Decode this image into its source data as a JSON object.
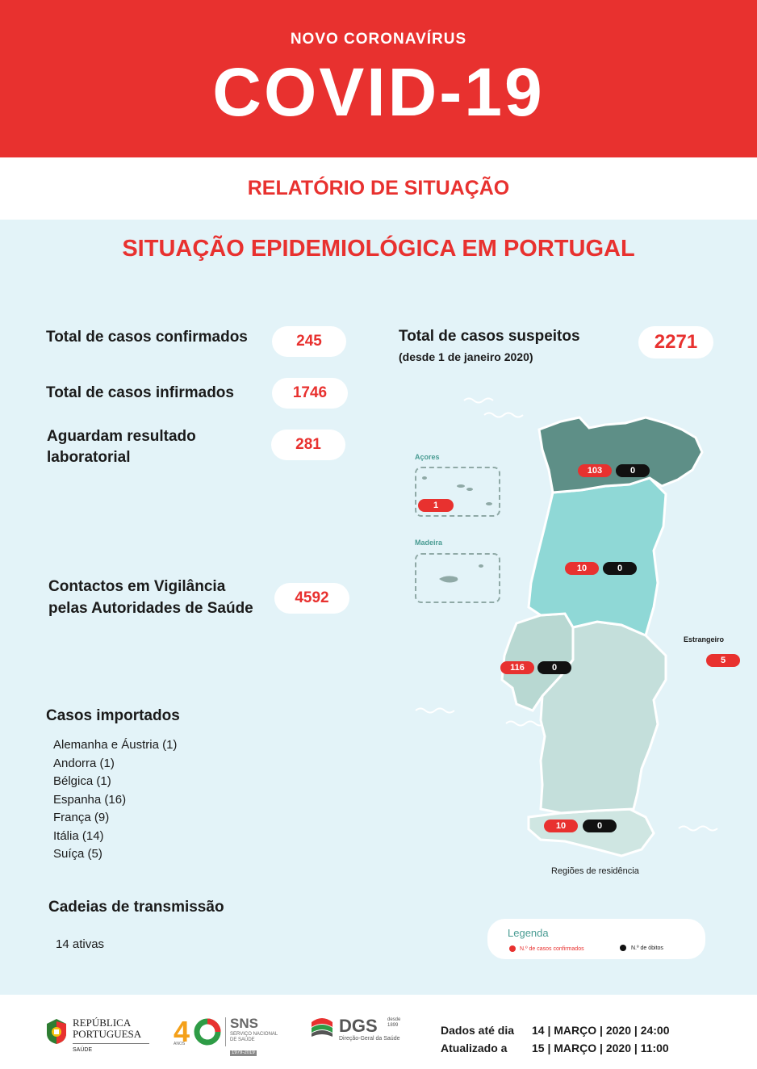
{
  "header": {
    "kicker": "NOVO CORONAVÍRUS",
    "title": "COVID-19"
  },
  "subheader": {
    "title": "RELATÓRIO DE SITUAÇÃO"
  },
  "main": {
    "section_title": "SITUAÇÃO EPIDEMIOLÓGICA EM PORTUGAL",
    "stats": {
      "confirmed": {
        "label": "Total de casos confirmados",
        "value": "245"
      },
      "infirmed": {
        "label": "Total de casos infirmados",
        "value": "1746"
      },
      "awaiting": {
        "label_line1": "Aguardam resultado",
        "label_line2": "laboratorial",
        "value": "281"
      },
      "contacts": {
        "label_line1": "Contactos em Vigilância",
        "label_line2": "pelas Autoridades de Saúde",
        "value": "4592"
      },
      "suspected": {
        "label": "Total de casos suspeitos",
        "sublabel": "(desde 1 de janeiro 2020)",
        "value": "2271"
      }
    },
    "imported": {
      "title": "Casos importados",
      "items": [
        "Alemanha e Áustria (1)",
        "Andorra (1)",
        "Bélgica (1)",
        "Espanha (16)",
        "França (9)",
        "Itália (14)",
        "Suíça (5)"
      ]
    },
    "chains": {
      "title": "Cadeias de transmissão",
      "value": "14 ativas"
    }
  },
  "map": {
    "azores": {
      "label": "Açores",
      "confirmed": "1"
    },
    "madeira": {
      "label": "Madeira"
    },
    "north": {
      "confirmed": "103",
      "deaths": "0"
    },
    "centre": {
      "confirmed": "10",
      "deaths": "0"
    },
    "lisbon": {
      "confirmed": "116",
      "deaths": "0"
    },
    "algarve": {
      "confirmed": "10",
      "deaths": "0"
    },
    "abroad": {
      "label": "Estrangeiro",
      "confirmed": "5"
    },
    "caption": "Regiões de residência",
    "colors": {
      "north": "#5e8f87",
      "centre": "#8fd8d6",
      "lisbon": "#b8d8d2",
      "alentejo": "#c4dfdb",
      "algarve": "#cfe6e2"
    }
  },
  "legend": {
    "title": "Legenda",
    "confirmed": "N.º de casos confirmados",
    "deaths": "N.º de óbitos"
  },
  "footer": {
    "republica_line1": "REPÚBLICA",
    "republica_line2": "PORTUGUESA",
    "saude": "SAÚDE",
    "forty": "40",
    "anos": "ANOS",
    "sns": "SNS",
    "sns_sub1": "SERVIÇO NACIONAL",
    "sns_sub2": "DE SAÚDE",
    "sns_years": "1979-2019",
    "dgs": "DGS",
    "dgs_sub": "Direção-Geral da Saúde",
    "dgs_since1": "desde",
    "dgs_since2": "1899",
    "data_label": "Dados até dia",
    "data_value": "14 | MARÇO | 2020 | 24:00",
    "update_label": "Atualizado a",
    "update_value": "15 | MARÇO | 2020 | 11:00"
  }
}
